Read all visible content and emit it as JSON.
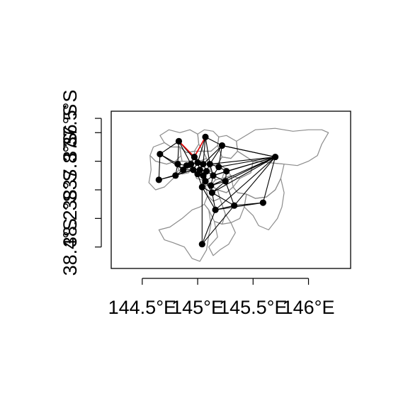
{
  "map": {
    "type": "map",
    "subject": "network graph over region boundaries",
    "frame": {
      "x_range": [
        144.22,
        146.38
      ],
      "y_range": [
        -38.55,
        -37.45
      ]
    },
    "x_axis": {
      "ticks": [
        {
          "value": 144.5,
          "label": "144.5°E"
        },
        {
          "value": 145.0,
          "label": "145°E"
        },
        {
          "value": 145.5,
          "label": "145.5°E"
        },
        {
          "value": 146.0,
          "label": "146°E"
        }
      ]
    },
    "y_axis": {
      "ticks": [
        {
          "value": -38.4,
          "label": "38.4°S"
        },
        {
          "value": -38.2,
          "label": "38.2°S"
        },
        {
          "value": -38.0,
          "label": "38°S"
        },
        {
          "value": -37.8,
          "label": "37.8°S"
        },
        {
          "value": -37.6,
          "label": "37.6°S"
        },
        {
          "value": -37.5,
          "label": "37.5°S"
        }
      ]
    },
    "colors": {
      "boundary": "#8c8c8c",
      "edge": "#000000",
      "highlight_edge": "#e00000",
      "node": "#000000",
      "frame": "#000000"
    },
    "nodes": [
      {
        "id": "n1",
        "lon": 145.07,
        "lat": -37.63
      },
      {
        "id": "n2",
        "lon": 144.83,
        "lat": -37.66
      },
      {
        "id": "n3",
        "lon": 145.22,
        "lat": -37.69
      },
      {
        "id": "n4",
        "lon": 144.66,
        "lat": -37.75
      },
      {
        "id": "n5",
        "lon": 145.7,
        "lat": -37.77
      },
      {
        "id": "n6",
        "lon": 144.97,
        "lat": -37.77
      },
      {
        "id": "n7",
        "lon": 144.82,
        "lat": -37.82
      },
      {
        "id": "n8",
        "lon": 144.9,
        "lat": -37.83
      },
      {
        "id": "n9",
        "lon": 144.94,
        "lat": -37.82
      },
      {
        "id": "n10",
        "lon": 145.0,
        "lat": -37.81
      },
      {
        "id": "n11",
        "lon": 145.05,
        "lat": -37.82
      },
      {
        "id": "n12",
        "lon": 145.11,
        "lat": -37.82
      },
      {
        "id": "n13",
        "lon": 145.19,
        "lat": -37.84
      },
      {
        "id": "n14",
        "lon": 144.87,
        "lat": -37.86
      },
      {
        "id": "n15",
        "lon": 144.96,
        "lat": -37.86
      },
      {
        "id": "n16",
        "lon": 145.02,
        "lat": -37.86
      },
      {
        "id": "n17",
        "lon": 145.08,
        "lat": -37.87
      },
      {
        "id": "n18",
        "lon": 145.26,
        "lat": -37.87
      },
      {
        "id": "n19",
        "lon": 145.0,
        "lat": -37.89
      },
      {
        "id": "n20",
        "lon": 145.05,
        "lat": -37.9
      },
      {
        "id": "n21",
        "lon": 145.14,
        "lat": -37.9
      },
      {
        "id": "n22",
        "lon": 144.8,
        "lat": -37.9
      },
      {
        "id": "n23",
        "lon": 144.65,
        "lat": -37.93
      },
      {
        "id": "n24",
        "lon": 145.07,
        "lat": -37.94
      },
      {
        "id": "n25",
        "lon": 145.25,
        "lat": -37.94
      },
      {
        "id": "n26",
        "lon": 145.12,
        "lat": -37.97
      },
      {
        "id": "n27",
        "lon": 145.04,
        "lat": -37.98
      },
      {
        "id": "n28",
        "lon": 145.13,
        "lat": -38.02
      },
      {
        "id": "n29",
        "lon": 145.59,
        "lat": -38.09
      },
      {
        "id": "n30",
        "lon": 145.33,
        "lat": -38.11
      },
      {
        "id": "n31",
        "lon": 145.16,
        "lat": -38.14
      },
      {
        "id": "n32",
        "lon": 145.04,
        "lat": -38.38
      }
    ],
    "edges": [
      [
        "n1",
        "n6"
      ],
      [
        "n1",
        "n3"
      ],
      [
        "n1",
        "n10"
      ],
      [
        "n1",
        "n12"
      ],
      [
        "n1",
        "n11"
      ],
      [
        "n2",
        "n6"
      ],
      [
        "n2",
        "n4"
      ],
      [
        "n2",
        "n7"
      ],
      [
        "n2",
        "n9"
      ],
      [
        "n2",
        "n10"
      ],
      [
        "n3",
        "n5"
      ],
      [
        "n3",
        "n12"
      ],
      [
        "n3",
        "n13"
      ],
      [
        "n3",
        "n11"
      ],
      [
        "n4",
        "n7"
      ],
      [
        "n4",
        "n14"
      ],
      [
        "n4",
        "n23"
      ],
      [
        "n5",
        "n12"
      ],
      [
        "n5",
        "n13"
      ],
      [
        "n5",
        "n18"
      ],
      [
        "n5",
        "n21"
      ],
      [
        "n5",
        "n25"
      ],
      [
        "n5",
        "n26"
      ],
      [
        "n5",
        "n28"
      ],
      [
        "n5",
        "n29"
      ],
      [
        "n5",
        "n30"
      ],
      [
        "n5",
        "n31"
      ],
      [
        "n5",
        "n3"
      ],
      [
        "n6",
        "n9"
      ],
      [
        "n6",
        "n10"
      ],
      [
        "n6",
        "n11"
      ],
      [
        "n7",
        "n8"
      ],
      [
        "n7",
        "n14"
      ],
      [
        "n7",
        "n22"
      ],
      [
        "n8",
        "n9"
      ],
      [
        "n8",
        "n14"
      ],
      [
        "n8",
        "n15"
      ],
      [
        "n9",
        "n10"
      ],
      [
        "n9",
        "n15"
      ],
      [
        "n10",
        "n11"
      ],
      [
        "n10",
        "n16"
      ],
      [
        "n10",
        "n15"
      ],
      [
        "n11",
        "n12"
      ],
      [
        "n11",
        "n16"
      ],
      [
        "n11",
        "n17"
      ],
      [
        "n12",
        "n13"
      ],
      [
        "n12",
        "n17"
      ],
      [
        "n12",
        "n21"
      ],
      [
        "n13",
        "n18"
      ],
      [
        "n13",
        "n21"
      ],
      [
        "n14",
        "n15"
      ],
      [
        "n14",
        "n22"
      ],
      [
        "n15",
        "n16"
      ],
      [
        "n15",
        "n19"
      ],
      [
        "n16",
        "n17"
      ],
      [
        "n16",
        "n19"
      ],
      [
        "n16",
        "n20"
      ],
      [
        "n17",
        "n20"
      ],
      [
        "n17",
        "n21"
      ],
      [
        "n17",
        "n24"
      ],
      [
        "n18",
        "n21"
      ],
      [
        "n18",
        "n25"
      ],
      [
        "n19",
        "n20"
      ],
      [
        "n19",
        "n27"
      ],
      [
        "n20",
        "n24"
      ],
      [
        "n20",
        "n27"
      ],
      [
        "n21",
        "n24"
      ],
      [
        "n21",
        "n25"
      ],
      [
        "n21",
        "n26"
      ],
      [
        "n22",
        "n23"
      ],
      [
        "n22",
        "n15"
      ],
      [
        "n23",
        "n15"
      ],
      [
        "n24",
        "n26"
      ],
      [
        "n24",
        "n27"
      ],
      [
        "n24",
        "n28"
      ],
      [
        "n25",
        "n26"
      ],
      [
        "n25",
        "n30"
      ],
      [
        "n25",
        "n28"
      ],
      [
        "n26",
        "n28"
      ],
      [
        "n27",
        "n28"
      ],
      [
        "n27",
        "n31"
      ],
      [
        "n28",
        "n30"
      ],
      [
        "n28",
        "n31"
      ],
      [
        "n29",
        "n30"
      ],
      [
        "n29",
        "n31"
      ],
      [
        "n30",
        "n31"
      ],
      [
        "n31",
        "n32"
      ],
      [
        "n32",
        "n27"
      ],
      [
        "n32",
        "n30"
      ]
    ],
    "highlight_edges": [
      [
        "n6",
        "n2"
      ],
      [
        "n6",
        "n1"
      ]
    ],
    "regions": [
      [
        [
          144.66,
          -37.62
        ],
        [
          144.74,
          -37.58
        ],
        [
          144.84,
          -37.6
        ],
        [
          144.93,
          -37.58
        ],
        [
          145.0,
          -37.61
        ],
        [
          145.01,
          -37.68
        ],
        [
          144.97,
          -37.73
        ],
        [
          144.9,
          -37.74
        ],
        [
          144.84,
          -37.7
        ],
        [
          144.76,
          -37.7
        ],
        [
          144.7,
          -37.67
        ]
      ],
      [
        [
          145.0,
          -37.61
        ],
        [
          145.06,
          -37.58
        ],
        [
          145.14,
          -37.59
        ],
        [
          145.19,
          -37.63
        ],
        [
          145.18,
          -37.69
        ],
        [
          145.12,
          -37.73
        ],
        [
          145.05,
          -37.73
        ],
        [
          145.01,
          -37.68
        ]
      ],
      [
        [
          145.19,
          -37.63
        ],
        [
          145.26,
          -37.62
        ],
        [
          145.35,
          -37.66
        ],
        [
          145.36,
          -37.73
        ],
        [
          145.3,
          -37.78
        ],
        [
          145.22,
          -37.77
        ],
        [
          145.18,
          -37.69
        ]
      ],
      [
        [
          145.35,
          -37.66
        ],
        [
          145.52,
          -37.58
        ],
        [
          145.7,
          -37.57
        ],
        [
          145.86,
          -37.59
        ],
        [
          146.0,
          -37.58
        ],
        [
          146.12,
          -37.58
        ],
        [
          146.18,
          -37.6
        ],
        [
          146.12,
          -37.68
        ],
        [
          146.08,
          -37.76
        ],
        [
          146.0,
          -37.8
        ],
        [
          145.9,
          -37.83
        ],
        [
          145.78,
          -37.82
        ],
        [
          145.65,
          -37.81
        ],
        [
          145.5,
          -37.8
        ],
        [
          145.36,
          -37.73
        ]
      ],
      [
        [
          144.6,
          -37.7
        ],
        [
          144.7,
          -37.67
        ],
        [
          144.76,
          -37.7
        ],
        [
          144.84,
          -37.7
        ],
        [
          144.85,
          -37.76
        ],
        [
          144.8,
          -37.8
        ],
        [
          144.72,
          -37.82
        ],
        [
          144.62,
          -37.8
        ],
        [
          144.57,
          -37.76
        ]
      ],
      [
        [
          144.84,
          -37.7
        ],
        [
          144.9,
          -37.74
        ],
        [
          144.97,
          -37.73
        ],
        [
          144.98,
          -37.78
        ],
        [
          144.93,
          -37.8
        ],
        [
          144.86,
          -37.8
        ],
        [
          144.85,
          -37.76
        ]
      ],
      [
        [
          144.97,
          -37.73
        ],
        [
          145.05,
          -37.73
        ],
        [
          145.08,
          -37.78
        ],
        [
          145.02,
          -37.8
        ],
        [
          144.98,
          -37.78
        ]
      ],
      [
        [
          145.05,
          -37.73
        ],
        [
          145.12,
          -37.73
        ],
        [
          145.18,
          -37.69
        ],
        [
          145.22,
          -37.77
        ],
        [
          145.18,
          -37.82
        ],
        [
          145.1,
          -37.82
        ],
        [
          145.08,
          -37.78
        ]
      ],
      [
        [
          145.22,
          -37.77
        ],
        [
          145.3,
          -37.78
        ],
        [
          145.36,
          -37.73
        ],
        [
          145.5,
          -37.8
        ],
        [
          145.48,
          -37.88
        ],
        [
          145.38,
          -37.92
        ],
        [
          145.3,
          -37.9
        ],
        [
          145.25,
          -37.85
        ],
        [
          145.18,
          -37.82
        ]
      ],
      [
        [
          144.57,
          -37.76
        ],
        [
          144.62,
          -37.8
        ],
        [
          144.72,
          -37.82
        ],
        [
          144.8,
          -37.8
        ],
        [
          144.83,
          -37.86
        ],
        [
          144.78,
          -37.92
        ],
        [
          144.7,
          -37.98
        ],
        [
          144.62,
          -38.0
        ],
        [
          144.56,
          -37.95
        ],
        [
          144.58,
          -37.86
        ]
      ],
      [
        [
          144.8,
          -37.8
        ],
        [
          144.86,
          -37.8
        ],
        [
          144.93,
          -37.8
        ],
        [
          144.95,
          -37.84
        ],
        [
          144.92,
          -37.88
        ],
        [
          144.86,
          -37.89
        ],
        [
          144.83,
          -37.86
        ]
      ],
      [
        [
          144.93,
          -37.8
        ],
        [
          144.98,
          -37.78
        ],
        [
          145.02,
          -37.8
        ],
        [
          145.03,
          -37.84
        ],
        [
          144.98,
          -37.86
        ],
        [
          144.95,
          -37.84
        ]
      ],
      [
        [
          145.02,
          -37.8
        ],
        [
          145.08,
          -37.78
        ],
        [
          145.1,
          -37.82
        ],
        [
          145.12,
          -37.87
        ],
        [
          145.06,
          -37.88
        ],
        [
          145.03,
          -37.84
        ]
      ],
      [
        [
          145.1,
          -37.82
        ],
        [
          145.18,
          -37.82
        ],
        [
          145.25,
          -37.85
        ],
        [
          145.22,
          -37.92
        ],
        [
          145.16,
          -37.93
        ],
        [
          145.12,
          -37.87
        ]
      ],
      [
        [
          144.95,
          -37.84
        ],
        [
          144.98,
          -37.86
        ],
        [
          145.03,
          -37.84
        ],
        [
          145.06,
          -37.88
        ],
        [
          145.04,
          -37.93
        ],
        [
          144.99,
          -37.92
        ],
        [
          144.97,
          -37.88
        ]
      ],
      [
        [
          145.06,
          -37.88
        ],
        [
          145.12,
          -37.87
        ],
        [
          145.16,
          -37.93
        ],
        [
          145.12,
          -37.97
        ],
        [
          145.07,
          -37.97
        ],
        [
          145.04,
          -37.93
        ]
      ],
      [
        [
          145.16,
          -37.93
        ],
        [
          145.22,
          -37.92
        ],
        [
          145.3,
          -37.9
        ],
        [
          145.32,
          -37.98
        ],
        [
          145.26,
          -38.02
        ],
        [
          145.18,
          -38.0
        ],
        [
          145.12,
          -37.97
        ]
      ],
      [
        [
          145.38,
          -37.92
        ],
        [
          145.48,
          -37.88
        ],
        [
          145.5,
          -37.8
        ],
        [
          145.65,
          -37.81
        ],
        [
          145.78,
          -37.82
        ],
        [
          145.75,
          -37.92
        ],
        [
          145.7,
          -38.0
        ],
        [
          145.62,
          -38.05
        ],
        [
          145.52,
          -38.06
        ],
        [
          145.44,
          -38.03
        ],
        [
          145.36,
          -38.02
        ],
        [
          145.32,
          -37.98
        ]
      ],
      [
        [
          145.07,
          -37.97
        ],
        [
          145.12,
          -37.97
        ],
        [
          145.18,
          -38.0
        ],
        [
          145.2,
          -38.06
        ],
        [
          145.14,
          -38.08
        ],
        [
          145.09,
          -38.04
        ]
      ],
      [
        [
          145.18,
          -38.0
        ],
        [
          145.26,
          -38.02
        ],
        [
          145.32,
          -37.98
        ],
        [
          145.36,
          -38.02
        ],
        [
          145.44,
          -38.03
        ],
        [
          145.42,
          -38.12
        ],
        [
          145.38,
          -38.2
        ],
        [
          145.3,
          -38.23
        ],
        [
          145.25,
          -38.17
        ],
        [
          145.2,
          -38.06
        ]
      ],
      [
        [
          145.44,
          -38.03
        ],
        [
          145.52,
          -38.06
        ],
        [
          145.62,
          -38.05
        ],
        [
          145.7,
          -38.0
        ],
        [
          145.75,
          -37.92
        ],
        [
          145.78,
          -38.02
        ],
        [
          145.76,
          -38.12
        ],
        [
          145.72,
          -38.2
        ],
        [
          145.64,
          -38.28
        ],
        [
          145.55,
          -38.25
        ],
        [
          145.5,
          -38.18
        ],
        [
          145.42,
          -38.12
        ]
      ],
      [
        [
          145.09,
          -38.04
        ],
        [
          145.14,
          -38.08
        ],
        [
          145.2,
          -38.06
        ],
        [
          145.25,
          -38.17
        ],
        [
          145.22,
          -38.24
        ],
        [
          145.15,
          -38.22
        ],
        [
          145.1,
          -38.14
        ],
        [
          145.06,
          -38.1
        ]
      ],
      [
        [
          145.15,
          -38.22
        ],
        [
          145.22,
          -38.24
        ],
        [
          145.3,
          -38.23
        ],
        [
          145.34,
          -38.3
        ],
        [
          145.28,
          -38.38
        ],
        [
          145.2,
          -38.42
        ],
        [
          145.14,
          -38.46
        ],
        [
          145.1,
          -38.4
        ],
        [
          145.18,
          -38.33
        ]
      ],
      [
        [
          144.65,
          -38.28
        ],
        [
          144.75,
          -38.26
        ],
        [
          144.86,
          -38.2
        ],
        [
          144.95,
          -38.14
        ],
        [
          145.02,
          -38.12
        ],
        [
          145.06,
          -38.1
        ],
        [
          145.1,
          -38.14
        ],
        [
          145.12,
          -38.24
        ],
        [
          145.1,
          -38.32
        ],
        [
          145.08,
          -38.42
        ],
        [
          145.02,
          -38.5
        ],
        [
          144.95,
          -38.48
        ],
        [
          144.88,
          -38.4
        ],
        [
          144.78,
          -38.37
        ],
        [
          144.7,
          -38.35
        ]
      ]
    ]
  }
}
